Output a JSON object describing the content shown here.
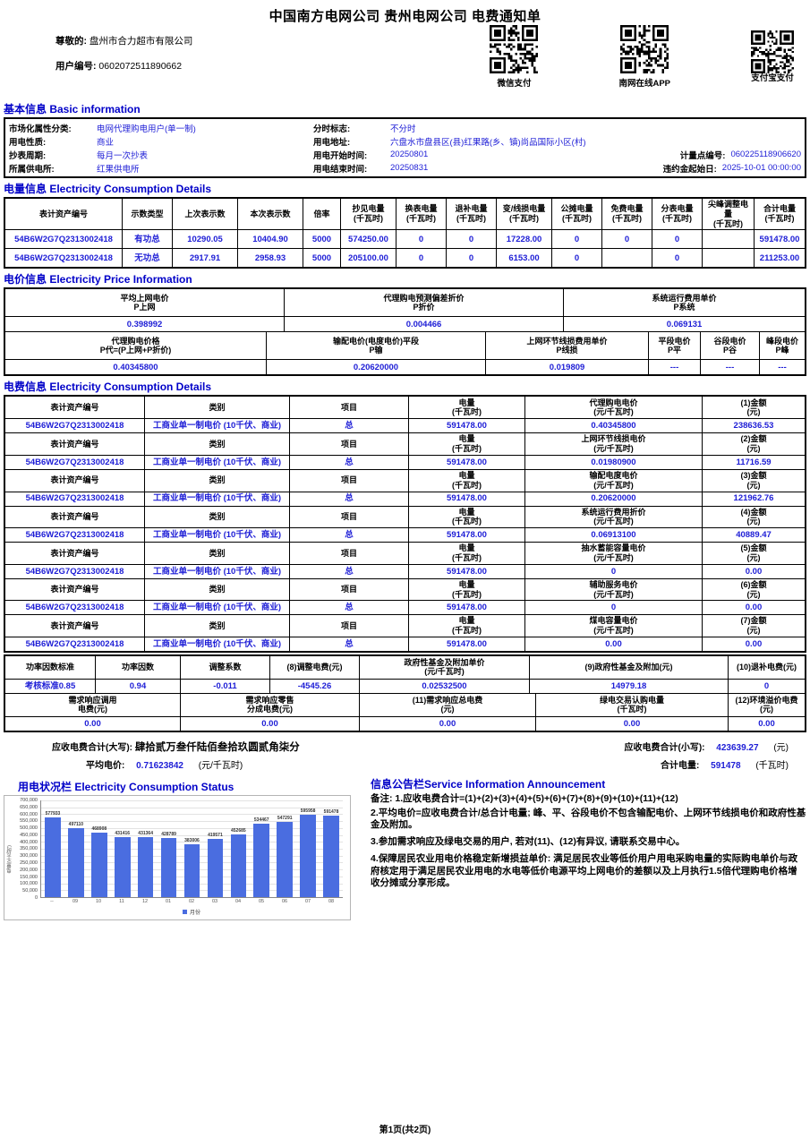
{
  "theme": {
    "value_blue": "#1d1dd6",
    "section_blue": "#0000c8",
    "bar_blue": "#4a6de0"
  },
  "page": {
    "title": "中国南方电网公司 贵州电网公司 电费通知单",
    "footer": "第1页(共2页)"
  },
  "header": {
    "dear_label": "尊敬的:",
    "dear_value": "盘州市合力超市有限公司",
    "user_no_label": "用户编号:",
    "user_no_value": "0602072511890662",
    "qr_labels": [
      "微信支付",
      "南网在线APP",
      "支付宝支付"
    ]
  },
  "sections": {
    "basic": "基本信息 Basic information",
    "consumption": "电量信息 Electricity Consumption Details",
    "price": "电价信息 Electricity Price Information",
    "fee": "电费信息 Electricity Consumption Details",
    "usage": "用电状况栏 Electricity Consumption Status",
    "announcement": "信息公告栏Service Information Announcement"
  },
  "basic_info": {
    "rows": [
      {
        "label": "市场化属性分类:",
        "value": "电网代理购电用户(单一制)"
      },
      {
        "label": "分时标志:",
        "value": "不分时"
      },
      {
        "label": "",
        "value": ""
      },
      {
        "label": "用电性质:",
        "value": "商业"
      },
      {
        "label": "用电地址:",
        "value": "六盘水市盘县区(县)红果路(乡、镇)尚品国际小区(村)"
      },
      {
        "label": "",
        "value": ""
      },
      {
        "label": "抄表周期:",
        "value": "每月一次抄表"
      },
      {
        "label": "用电开始时间:",
        "value": "20250801"
      },
      {
        "label": "计量点编号:",
        "value": "060225118906620"
      },
      {
        "label": "所属供电所:",
        "value": "红果供电所"
      },
      {
        "label": "用电结束时间:",
        "value": "20250831"
      },
      {
        "label": "违约金起始日:",
        "value": "2025-10-01 00:00:00"
      }
    ]
  },
  "consumption_table": [
    [
      "表计资产编号",
      "示数类型",
      "上次表示数",
      "本次表示数",
      "倍率",
      "抄见电量\n(千瓦时)",
      "换表电量\n(千瓦时)",
      "退补电量\n(千瓦时)",
      "变/线损电量\n(千瓦时)",
      "公摊电量\n(千瓦时)",
      "免费电量\n(千瓦时)",
      "分表电量\n(千瓦时)",
      "尖峰调整电量\n(千瓦时)",
      "合计电量\n(千瓦时)"
    ],
    [
      "54B6W2G7Q2313002418",
      "有功总",
      "10290.05",
      "10404.90",
      "5000",
      "574250.00",
      "0",
      "0",
      "17228.00",
      "0",
      "0",
      "0",
      "",
      "591478.00"
    ],
    [
      "54B6W2G7Q2313002418",
      "无功总",
      "2917.91",
      "2958.93",
      "5000",
      "205100.00",
      "0",
      "0",
      "6153.00",
      "0",
      "",
      "0",
      "",
      "211253.00"
    ]
  ],
  "price_table": {
    "top": [
      [
        "平均上网电价\nP上网",
        "代理购电预测偏差折价\nP折价",
        "系统运行费用单价\nP系统"
      ],
      [
        "0.398992",
        "0.004466",
        "0.069131"
      ]
    ],
    "bottom": [
      [
        "代理购电价格\nP代=(P上网+P折价)",
        "输配电价(电度电价)平段\nP输",
        "上网环节线损费用单价\nP线损",
        "平段电价\nP平",
        "谷段电价\nP谷",
        "峰段电价\nP峰"
      ],
      [
        "0.40345800",
        "0.20620000",
        "0.019809",
        "---",
        "---",
        "---"
      ]
    ]
  },
  "fee_table": {
    "rows": [
      [
        "表计资产编号",
        "类别",
        "项目",
        "电量\n(千瓦时)",
        "代理购电电价\n(元/千瓦时)",
        "(1)金额\n(元)"
      ],
      [
        "54B6W2G7Q2313002418",
        "工商业单一制电价 (10千伏、商业)",
        "总",
        "591478.00",
        "0.40345800",
        "238636.53"
      ],
      [
        "表计资产编号",
        "类别",
        "项目",
        "电量\n(千瓦时)",
        "上网环节线损电价\n(元/千瓦时)",
        "(2)金额\n(元)"
      ],
      [
        "54B6W2G7Q2313002418",
        "工商业单一制电价 (10千伏、商业)",
        "总",
        "591478.00",
        "0.01980900",
        "11716.59"
      ],
      [
        "表计资产编号",
        "类别",
        "项目",
        "电量\n(千瓦时)",
        "输配电度电价\n(元/千瓦时)",
        "(3)金额\n(元)"
      ],
      [
        "54B6W2G7Q2313002418",
        "工商业单一制电价 (10千伏、商业)",
        "总",
        "591478.00",
        "0.20620000",
        "121962.76"
      ],
      [
        "表计资产编号",
        "类别",
        "项目",
        "电量\n(千瓦时)",
        "系统运行费用折价\n(元/千瓦时)",
        "(4)金额\n(元)"
      ],
      [
        "54B6W2G7Q2313002418",
        "工商业单一制电价 (10千伏、商业)",
        "总",
        "591478.00",
        "0.06913100",
        "40889.47"
      ],
      [
        "表计资产编号",
        "类别",
        "项目",
        "电量\n(千瓦时)",
        "抽水蓄能容量电价\n(元/千瓦时)",
        "(5)金额\n(元)"
      ],
      [
        "54B6W2G7Q2313002418",
        "工商业单一制电价 (10千伏、商业)",
        "总",
        "591478.00",
        "0",
        "0.00"
      ],
      [
        "表计资产编号",
        "类别",
        "项目",
        "电量\n(千瓦时)",
        "辅助服务电价\n(元/千瓦时)",
        "(6)金额\n(元)"
      ],
      [
        "54B6W2G7Q2313002418",
        "工商业单一制电价 (10千伏、商业)",
        "总",
        "591478.00",
        "0",
        "0.00"
      ],
      [
        "表计资产编号",
        "类别",
        "项目",
        "电量\n(千瓦时)",
        "煤电容量电价\n(元/千瓦时)",
        "(7)金额\n(元)"
      ],
      [
        "54B6W2G7Q2313002418",
        "工商业单一制电价 (10千伏、商业)",
        "总",
        "591478.00",
        "0.00",
        "0.00"
      ]
    ]
  },
  "power_table": {
    "top": [
      [
        "功率因数标准",
        "功率因数",
        "调整系数",
        "(8)调整电费(元)",
        "政府性基金及附加单价\n(元/千瓦时)",
        "(9)政府性基金及附加(元)",
        "(10)退补电费(元)"
      ],
      [
        "考核标准0.85",
        "0.94",
        "-0.011",
        "-4545.26",
        "0.02532500",
        "14979.18",
        "0"
      ]
    ],
    "bottom": [
      [
        "需求响应调用\n电费(元)",
        "需求响应零售\n分成电费(元)",
        "(11)需求响应总电费\n(元)",
        "绿电交易认购电量\n(千瓦时)",
        "(12)环境溢价电费\n(元)"
      ],
      [
        "0.00",
        "0.00",
        "0.00",
        "0.00",
        "0.00"
      ]
    ]
  },
  "summary": {
    "total_cn_label": "应收电费合计(大写):",
    "total_cn_value": "肆拾贰万叁仟陆佰叁拾玖圆贰角柒分",
    "total_num_label": "应收电费合计(小写):",
    "total_num_value": "423639.27",
    "total_num_unit": "(元)",
    "avg_label": "平均电价:",
    "avg_value": "0.71623842",
    "avg_unit": "(元/千瓦时)",
    "total_kwh_label": "合计电量:",
    "total_kwh_value": "591478",
    "total_kwh_unit": "(千瓦时)"
  },
  "chart_data": {
    "type": "bar",
    "title": "用电状况栏 Electricity Consumption Status",
    "categories": [
      "--",
      "09",
      "10",
      "11",
      "12",
      "01",
      "02",
      "03",
      "04",
      "05",
      "06",
      "07",
      "08"
    ],
    "values": [
      577933,
      497110,
      468908,
      431416,
      431364,
      428789,
      383006,
      419571,
      452685,
      534467,
      547291,
      595958,
      591478
    ],
    "xlabel": "",
    "ylabel": "电量(千瓦时)",
    "ylim": [
      0,
      700000
    ],
    "ytick_step": 50000,
    "grid": true,
    "legend": "月份",
    "legend_position": "bottom",
    "bar_color": "#4a6de0"
  },
  "announcement": {
    "lines": [
      "备注: 1.应收电费合计=(1)+(2)+(3)+(4)+(5)+(6)+(7)+(8)+(9)+(10)+(11)+(12)",
      "2.平均电价=应收电费合计/总合计电量; 峰、平、谷段电价不包含输配电价、上网环节线损电价和政府性基金及附加。",
      "3.参加需求响应及绿电交易的用户, 若对(11)、(12)有异议, 请联系交易中心。",
      "4.保障居民农业用电价格稳定新增损益单价: 满足居民农业等低价用户用电采购电量的实际购电单价与政府核定用于满足居民农业用电的水电等低价电源平均上网电价的差额以及上月执行1.5倍代理购电价格增收分摊或分享形成。"
    ]
  }
}
